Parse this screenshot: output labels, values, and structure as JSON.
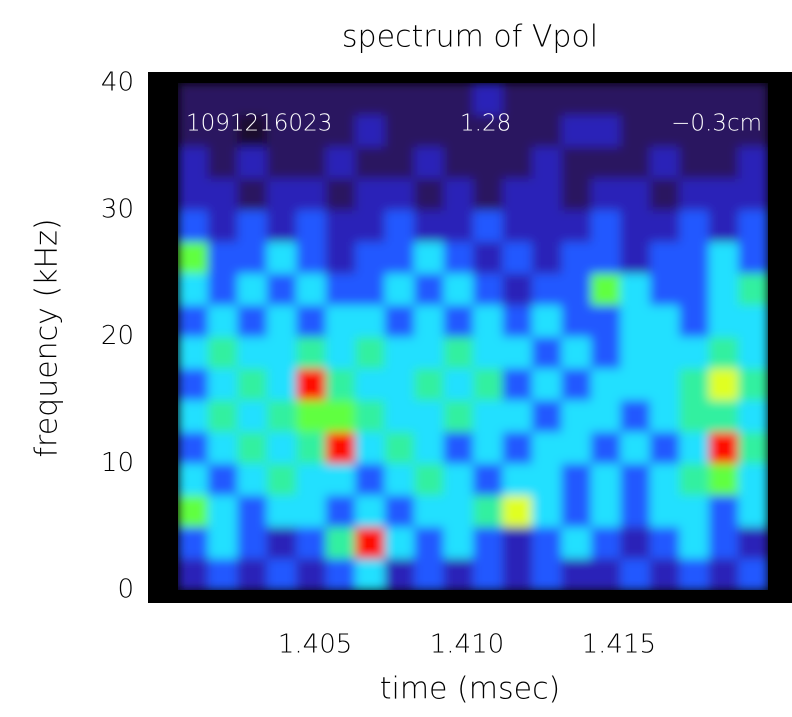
{
  "chart_data": {
    "type": "heatmap",
    "title": "spectrum of Vpol",
    "xlabel": "time (msec)",
    "ylabel": "frequency (kHz)",
    "annotations": [
      "1091216023",
      "1.28",
      "−0.3cm"
    ],
    "xlim": [
      1.3995,
      1.4207
    ],
    "ylim": [
      0,
      40
    ],
    "xticks": [
      1.405,
      {
        "value": 1.41,
        "label": "1.410"
      },
      1.415
    ],
    "yticks": [
      0,
      10,
      20,
      30,
      40
    ],
    "xbins": [
      1.4005,
      1.40147,
      1.40244,
      1.40341,
      1.40438,
      1.40535,
      1.40632,
      1.40729,
      1.40826,
      1.40923,
      1.4102,
      1.41117,
      1.41214,
      1.41311,
      1.41408,
      1.41505,
      1.41602,
      1.41699,
      1.41796,
      1.41893,
      1.4199
    ],
    "ybins": [
      0,
      2.5,
      5,
      7.5,
      10,
      12.5,
      15,
      17.5,
      20,
      22.5,
      25,
      27.5,
      30,
      32.5,
      35,
      37.5,
      40
    ],
    "zlim": [
      0,
      10
    ],
    "colorscale": [
      "#000000",
      "#1c0a2e",
      "#2c1260",
      "#2a20b8",
      "#2058ff",
      "#20e0ff",
      "#30f0a0",
      "#60ff40",
      "#e0ff20",
      "#ff9000",
      "#ff1000"
    ],
    "z": [
      [
        3,
        4,
        3,
        4,
        3,
        4,
        5,
        3,
        4,
        3,
        4,
        3,
        4,
        3,
        3,
        4,
        3,
        4,
        3,
        4
      ],
      [
        4,
        5,
        4,
        3,
        4,
        6,
        10,
        5,
        4,
        5,
        4,
        3,
        4,
        5,
        4,
        3,
        4,
        5,
        4,
        3
      ],
      [
        7,
        5,
        4,
        5,
        5,
        4,
        5,
        4,
        5,
        5,
        6,
        8,
        5,
        4,
        5,
        4,
        5,
        5,
        4,
        5
      ],
      [
        5,
        4,
        5,
        6,
        5,
        5,
        4,
        5,
        6,
        5,
        4,
        5,
        5,
        4,
        5,
        4,
        5,
        6,
        7,
        5
      ],
      [
        4,
        5,
        6,
        5,
        6,
        10,
        5,
        6,
        5,
        4,
        5,
        4,
        5,
        5,
        4,
        5,
        4,
        5,
        10,
        6
      ],
      [
        5,
        6,
        5,
        6,
        7,
        7,
        6,
        5,
        5,
        6,
        5,
        5,
        4,
        5,
        5,
        4,
        5,
        6,
        6,
        5
      ],
      [
        4,
        5,
        6,
        5,
        10,
        6,
        5,
        5,
        6,
        5,
        6,
        4,
        5,
        4,
        5,
        5,
        5,
        6,
        8,
        6
      ],
      [
        5,
        6,
        5,
        5,
        6,
        5,
        6,
        5,
        5,
        6,
        5,
        5,
        4,
        5,
        4,
        5,
        5,
        5,
        6,
        5
      ],
      [
        4,
        5,
        4,
        5,
        4,
        5,
        5,
        4,
        5,
        4,
        5,
        4,
        5,
        4,
        4,
        5,
        5,
        4,
        5,
        5
      ],
      [
        5,
        4,
        5,
        4,
        5,
        4,
        4,
        5,
        4,
        5,
        4,
        3,
        4,
        4,
        7,
        5,
        4,
        4,
        5,
        6
      ],
      [
        7,
        4,
        4,
        5,
        4,
        3,
        4,
        4,
        5,
        4,
        3,
        4,
        3,
        4,
        4,
        3,
        4,
        4,
        5,
        4
      ],
      [
        4,
        3,
        4,
        3,
        4,
        3,
        3,
        4,
        3,
        3,
        4,
        3,
        3,
        3,
        4,
        3,
        3,
        4,
        3,
        4
      ],
      [
        3,
        3,
        2,
        3,
        3,
        2,
        3,
        3,
        2,
        3,
        2,
        3,
        3,
        2,
        3,
        3,
        2,
        3,
        3,
        3
      ],
      [
        3,
        2,
        3,
        2,
        2,
        3,
        2,
        2,
        3,
        2,
        2,
        2,
        3,
        2,
        2,
        2,
        3,
        2,
        2,
        3
      ],
      [
        2,
        2,
        1,
        2,
        2,
        2,
        3,
        2,
        2,
        2,
        2,
        2,
        2,
        3,
        3,
        2,
        2,
        2,
        2,
        2
      ],
      [
        2,
        2,
        2,
        2,
        2,
        2,
        2,
        2,
        2,
        2,
        3,
        2,
        2,
        2,
        2,
        2,
        2,
        2,
        2,
        2
      ]
    ]
  }
}
